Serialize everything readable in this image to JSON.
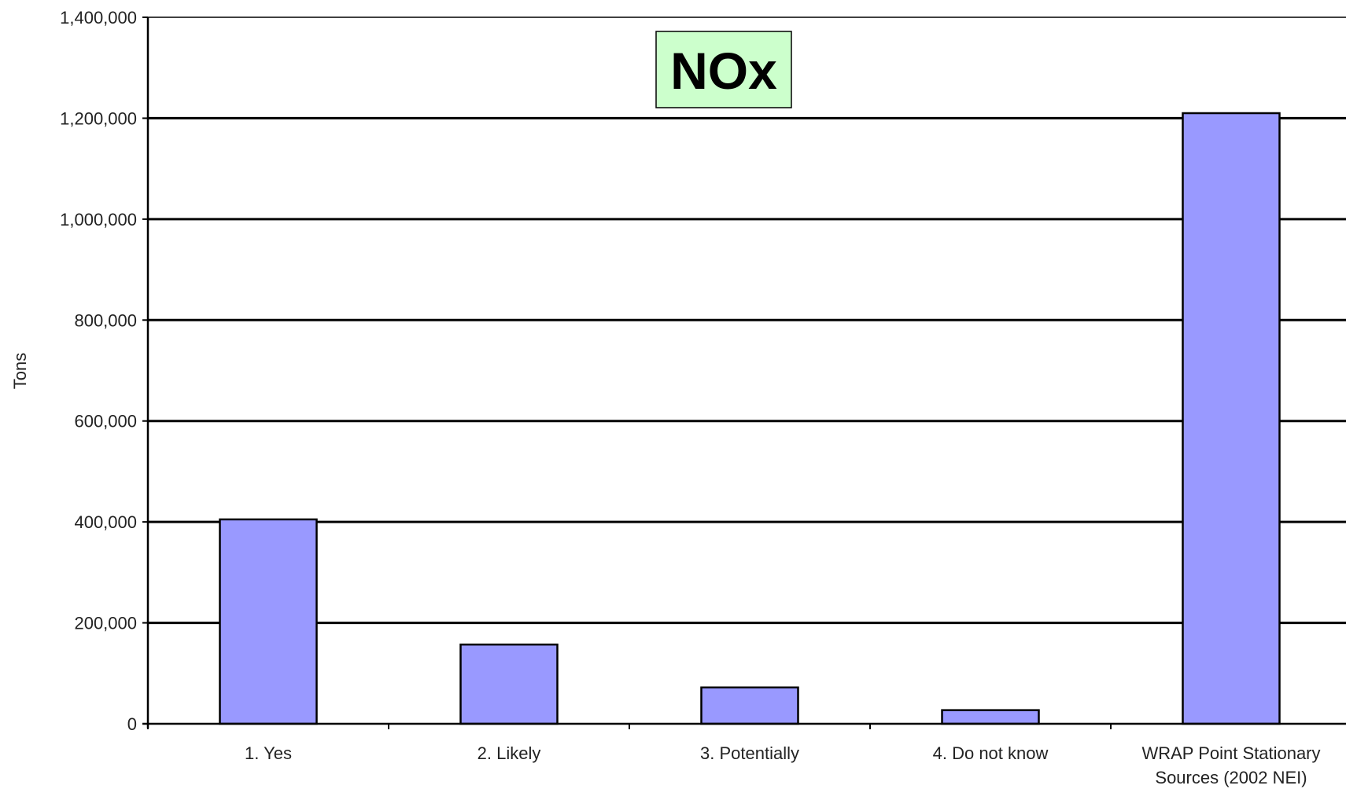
{
  "chart_data": {
    "type": "bar",
    "title": "NOx",
    "ylabel": "Tons",
    "xlabel": "",
    "categories": [
      [
        "1. Yes"
      ],
      [
        "2. Likely"
      ],
      [
        "3. Potentially"
      ],
      [
        "4. Do not know"
      ],
      [
        "WRAP Point Stationary",
        "Sources (2002 NEI)"
      ]
    ],
    "values": [
      405000,
      157000,
      72000,
      27000,
      1210000
    ],
    "ylim": [
      0,
      1400000
    ],
    "yticks": [
      0,
      200000,
      400000,
      600000,
      800000,
      1000000,
      1200000,
      1400000
    ],
    "ytick_labels": [
      "0",
      "200,000",
      "400,000",
      "600,000",
      "800,000",
      "1,000,000",
      "1,200,000",
      "1,400,000"
    ],
    "grid": true,
    "legend": "none",
    "colors": {
      "bar_fill": "#9999FF",
      "bar_stroke": "#000000",
      "gridline": "#000000",
      "title_box_fill": "#CCFFCC"
    }
  }
}
